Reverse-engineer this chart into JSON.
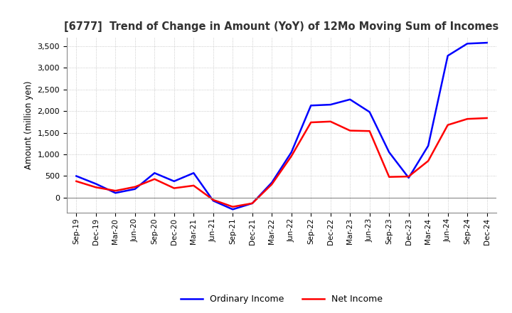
{
  "title": "[6777]  Trend of Change in Amount (YoY) of 12Mo Moving Sum of Incomes",
  "ylabel": "Amount (million yen)",
  "x_labels": [
    "Sep-19",
    "Dec-19",
    "Mar-20",
    "Jun-20",
    "Sep-20",
    "Dec-20",
    "Mar-21",
    "Jun-21",
    "Sep-21",
    "Dec-21",
    "Mar-22",
    "Jun-22",
    "Sep-22",
    "Dec-22",
    "Mar-23",
    "Jun-23",
    "Sep-23",
    "Dec-23",
    "Mar-24",
    "Jun-24",
    "Sep-24",
    "Dec-24"
  ],
  "ordinary_income": [
    500,
    320,
    110,
    200,
    570,
    380,
    570,
    -70,
    -270,
    -130,
    350,
    1050,
    2130,
    2150,
    2270,
    1980,
    1050,
    460,
    1200,
    3280,
    3560,
    3580
  ],
  "net_income": [
    380,
    240,
    160,
    250,
    430,
    220,
    280,
    -50,
    -210,
    -130,
    310,
    960,
    1740,
    1760,
    1550,
    1540,
    480,
    490,
    850,
    1680,
    1820,
    1840
  ],
  "ordinary_income_color": "#0000FF",
  "net_income_color": "#FF0000",
  "ylim_min": -350,
  "ylim_max": 3700,
  "yticks": [
    0,
    500,
    1000,
    1500,
    2000,
    2500,
    3000,
    3500
  ],
  "background_color": "#FFFFFF",
  "grid_color": "#AAAAAA",
  "legend_ordinary": "Ordinary Income",
  "legend_net": "Net Income"
}
